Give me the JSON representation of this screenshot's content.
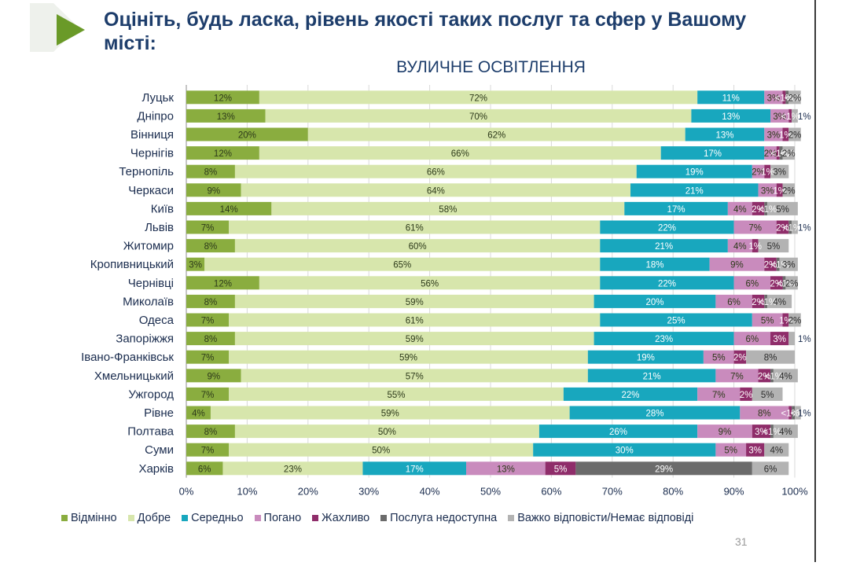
{
  "title": "Оцініть, будь ласка, рівень якості таких послуг та сфер у Вашому місті:",
  "page_number": "31",
  "colors": {
    "heading": "#1d3d6b",
    "accent_triangle": "#6a9a28"
  },
  "chart_data": {
    "type": "bar",
    "orientation": "horizontal",
    "stacked": true,
    "title": "ВУЛИЧНЕ ОСВІТЛЕННЯ",
    "xlim": [
      0,
      100
    ],
    "xticks": [
      "0%",
      "10%",
      "20%",
      "30%",
      "40%",
      "50%",
      "60%",
      "70%",
      "80%",
      "90%",
      "100%"
    ],
    "legend_position": "bottom",
    "grid": true,
    "categories": [
      "Луцьк",
      "Дніпро",
      "Вінниця",
      "Чернігів",
      "Тернопіль",
      "Черкаси",
      "Київ",
      "Львів",
      "Житомир",
      "Кропивницький",
      "Чернівці",
      "Миколаїв",
      "Одеса",
      "Запоріжжя",
      "Івано-Франківськ",
      "Хмельницький",
      "Ужгород",
      "Рівне",
      "Полтава",
      "Суми",
      "Харків"
    ],
    "series": [
      {
        "name": "Відмінно",
        "color": "#8aad3f",
        "values": [
          12,
          13,
          20,
          12,
          8,
          9,
          14,
          7,
          8,
          3,
          12,
          8,
          7,
          8,
          7,
          9,
          7,
          4,
          8,
          7,
          6
        ],
        "labels": [
          "12%",
          "13%",
          "20%",
          "12%",
          "8%",
          "9%",
          "14%",
          "7%",
          "8%",
          "3%",
          "12%",
          "8%",
          "7%",
          "8%",
          "7%",
          "9%",
          "7%",
          "4%",
          "8%",
          "7%",
          "6%"
        ]
      },
      {
        "name": "Добре",
        "color": "#d7e6ac",
        "values": [
          72,
          70,
          62,
          66,
          66,
          64,
          58,
          61,
          60,
          65,
          56,
          59,
          61,
          59,
          59,
          57,
          55,
          59,
          50,
          50,
          23
        ],
        "labels": [
          "72%",
          "70%",
          "62%",
          "66%",
          "66%",
          "64%",
          "58%",
          "61%",
          "60%",
          "65%",
          "56%",
          "59%",
          "61%",
          "59%",
          "59%",
          "57%",
          "55%",
          "59%",
          "50%",
          "50%",
          "23%"
        ]
      },
      {
        "name": "Середньо",
        "color": "#18a7be",
        "values": [
          11,
          13,
          13,
          17,
          19,
          21,
          17,
          22,
          21,
          18,
          22,
          20,
          25,
          23,
          19,
          21,
          22,
          28,
          26,
          30,
          17
        ],
        "labels": [
          "11%",
          "13%",
          "13%",
          "17%",
          "19%",
          "21%",
          "17%",
          "22%",
          "21%",
          "18%",
          "22%",
          "20%",
          "25%",
          "23%",
          "19%",
          "21%",
          "22%",
          "28%",
          "26%",
          "30%",
          "17%"
        ]
      },
      {
        "name": "Погано",
        "color": "#c98bbd",
        "values": [
          3,
          3,
          3,
          2,
          2,
          3,
          4,
          7,
          4,
          9,
          6,
          6,
          5,
          6,
          5,
          7,
          7,
          8,
          9,
          5,
          13
        ],
        "labels": [
          "3%",
          "3%",
          "3%",
          "2%",
          "2%",
          "3%",
          "4%",
          "7%",
          "4%",
          "9%",
          "6%",
          "6%",
          "5%",
          "6%",
          "5%",
          "7%",
          "7%",
          "8%",
          "9%",
          "5%",
          "13%"
        ]
      },
      {
        "name": "Жахливо",
        "color": "#8f2d6a",
        "values": [
          0.5,
          0.5,
          1,
          0.5,
          1,
          1,
          2,
          2,
          1,
          2,
          2,
          2,
          1,
          3,
          2,
          2,
          2,
          0.5,
          3,
          3,
          5
        ],
        "labels": [
          "<1%",
          "<1%",
          "1%",
          "<1%",
          "1%",
          "1%",
          "2%",
          "2%",
          "1%",
          "2%",
          "2%",
          "2%",
          "1%",
          "3%",
          "2%",
          "2%",
          "2%",
          "<1%",
          "3%",
          "3%",
          "5%"
        ]
      },
      {
        "name": "Послуга недоступна",
        "color": "#6b6b6b",
        "values": [
          0.5,
          0,
          0,
          0.5,
          0,
          0,
          0.5,
          0.5,
          0,
          0.5,
          0.5,
          0.5,
          0,
          0,
          0,
          0.5,
          0,
          0.5,
          0.5,
          0,
          29
        ],
        "labels": [
          "<1%",
          "",
          "",
          "<1%",
          "",
          "",
          "<1%",
          "<1%",
          "",
          "<1%",
          "<1%",
          "<1%",
          "",
          "",
          "",
          "<1%",
          "",
          "<1%",
          "<1%",
          "",
          "29%"
        ]
      },
      {
        "name": "Важко відповісти/Немає відповіді",
        "color": "#b3b3b3",
        "values": [
          2,
          1,
          2,
          2,
          3,
          2,
          5,
          1,
          5,
          3,
          2,
          4,
          2,
          1,
          8,
          4,
          5,
          1,
          4,
          4,
          6
        ],
        "labels": [
          "2%",
          "1%",
          "2%",
          "2%",
          "3%",
          "2%",
          "5%",
          "1%",
          "5%",
          "3%",
          "2%",
          "4%",
          "2%",
          "1%",
          "8%",
          "4%",
          "5%",
          "1%",
          "4%",
          "4%",
          "6%"
        ]
      }
    ]
  }
}
